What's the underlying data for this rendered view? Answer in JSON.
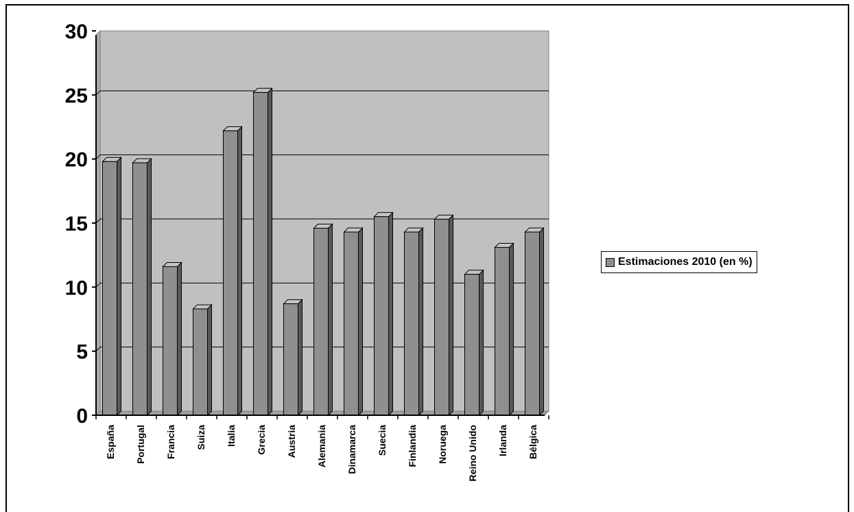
{
  "chart_data": {
    "type": "bar",
    "categories": [
      "España",
      "Portugal",
      "Francia",
      "Suiza",
      "Italia",
      "Grecia",
      "Austria",
      "Alemania",
      "Dinamarca",
      "Suecia",
      "Finlandia",
      "Noruega",
      "Reino Unido",
      "Irlanda",
      "Bélgica"
    ],
    "series": [
      {
        "name": "Estimaciones 2010 (en %)",
        "values": [
          19.8,
          19.7,
          11.6,
          8.3,
          22.2,
          25.2,
          8.7,
          14.6,
          14.3,
          15.5,
          14.3,
          15.3,
          11.0,
          13.1,
          14.3
        ]
      }
    ],
    "yticks": [
      "0",
      "5",
      "10",
      "15",
      "20",
      "25",
      "30"
    ],
    "ylim": [
      0,
      30
    ],
    "grid": true,
    "legend": "right",
    "colors": {
      "bar_front": "#8f8f8f",
      "bar_side": "#595959",
      "bar_top": "#c4c4c4",
      "plot_bg": "#c0c0c0"
    }
  }
}
